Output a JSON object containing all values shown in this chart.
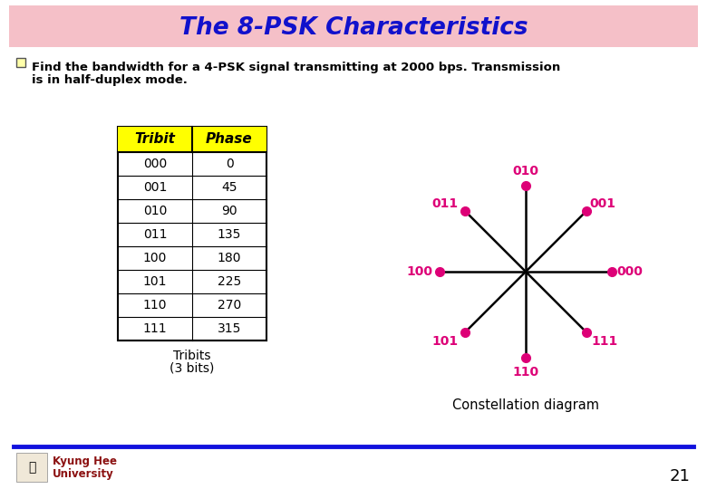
{
  "title": "The 8-PSK Characteristics",
  "title_color": "#1111CC",
  "title_bg_color": "#F5C0C8",
  "bg_color": "#FFFFFF",
  "question_line1": "Find the bandwidth for a 4-PSK signal transmitting at 2000 bps. Transmission",
  "question_line2": "is in half-duplex mode.",
  "table_tribits": [
    "000",
    "001",
    "010",
    "011",
    "100",
    "101",
    "110",
    "111"
  ],
  "table_phases": [
    "0",
    "45",
    "90",
    "135",
    "180",
    "225",
    "270",
    "315"
  ],
  "table_header_bg": "#FFFF00",
  "table_header_text": [
    "Tribit",
    "Phase"
  ],
  "table_caption_line1": "Tribits",
  "table_caption_line2": "(3 bits)",
  "constellation_angles_deg": [
    0,
    45,
    90,
    135,
    180,
    225,
    270,
    315
  ],
  "constellation_labels": [
    "000",
    "001",
    "010",
    "011",
    "100",
    "101",
    "110",
    "111"
  ],
  "dot_color": "#DD0077",
  "label_color": "#DD0077",
  "line_color": "#000000",
  "constellation_caption": "Constellation diagram",
  "footer_text_1": "Kyung Hee",
  "footer_text_2": "University",
  "footer_color": "#8B1010",
  "footer_line_color": "#1111DD",
  "page_number": "21"
}
